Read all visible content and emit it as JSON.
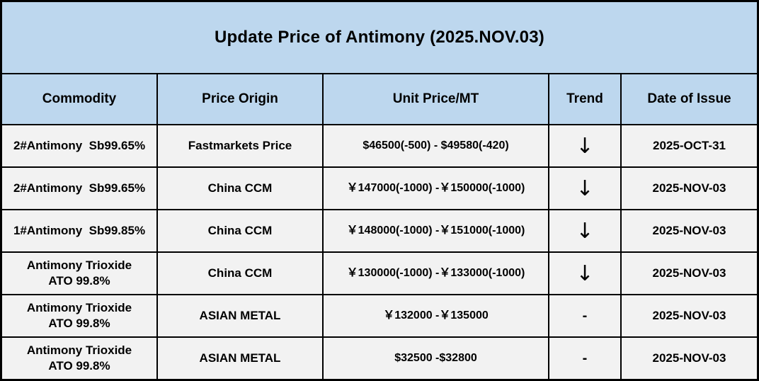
{
  "title": "Update Price of Antimony (2025.NOV.03)",
  "colors": {
    "header_background": "#BDD7EE",
    "row_background": "#F2F2F2",
    "border": "#000000",
    "text": "#000000"
  },
  "table": {
    "columns": {
      "commodity": "Commodity",
      "origin": "Price Origin",
      "price": "Unit Price/MT",
      "trend": "Trend",
      "date": "Date of Issue"
    },
    "rows": [
      {
        "commodity": "2#Antimony  Sb99.65%",
        "origin": "Fastmarkets Price",
        "price": "$46500(-500) - $49580(-420)",
        "trend": "↓",
        "date": "2025-OCT-31"
      },
      {
        "commodity": "2#Antimony  Sb99.65%",
        "origin": "China CCM",
        "price": "￥147000(-1000) -￥150000(-1000)",
        "trend": "↓",
        "date": "2025-NOV-03"
      },
      {
        "commodity": "1#Antimony  Sb99.85%",
        "origin": "China CCM",
        "price": "￥148000(-1000) -￥151000(-1000)",
        "trend": "↓",
        "date": "2025-NOV-03"
      },
      {
        "commodity": "Antimony Trioxide\nATO 99.8%",
        "origin": "China CCM",
        "price": "￥130000(-1000) -￥133000(-1000)",
        "trend": "↓",
        "date": "2025-NOV-03"
      },
      {
        "commodity": "Antimony Trioxide\nATO 99.8%",
        "origin": "ASIAN METAL",
        "price": "￥132000 -￥135000",
        "trend": "-",
        "date": "2025-NOV-03"
      },
      {
        "commodity": "Antimony Trioxide\nATO 99.8%",
        "origin": "ASIAN METAL",
        "price": "$32500 -$32800",
        "trend": "-",
        "date": "2025-NOV-03"
      }
    ]
  }
}
